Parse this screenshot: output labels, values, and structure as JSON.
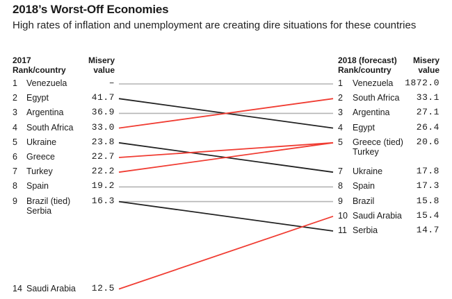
{
  "chart_data": {
    "type": "slope",
    "title": "2018’s Worst-Off Economies",
    "subtitle": "High rates of inflation and unemployment are creating dire situations for these countries",
    "left_header": {
      "rank_line1": "2017",
      "rank_line2": "Rank/country",
      "value_line1": "Misery",
      "value_line2": "value"
    },
    "right_header": {
      "rank_line1": "2018 (forecast)",
      "rank_line2": "Rank/country",
      "value_line1": "Misery",
      "value_line2": "value"
    },
    "left": [
      {
        "rank": "1",
        "country": "Venezuela",
        "value": "–"
      },
      {
        "rank": "2",
        "country": "Egypt",
        "value": "41.7"
      },
      {
        "rank": "3",
        "country": "Argentina",
        "value": "36.9"
      },
      {
        "rank": "4",
        "country": "South Africa",
        "value": "33.0"
      },
      {
        "rank": "5",
        "country": "Ukraine",
        "value": "23.8"
      },
      {
        "rank": "6",
        "country": "Greece",
        "value": "22.7"
      },
      {
        "rank": "7",
        "country": "Turkey",
        "value": "22.2"
      },
      {
        "rank": "8",
        "country": "Spain",
        "value": "19.2"
      },
      {
        "rank": "9",
        "country": "Brazil (tied)",
        "country2": "Serbia",
        "value": "16.3"
      },
      {
        "rank": "14",
        "country": "Saudi Arabia",
        "value": "12.5"
      }
    ],
    "right": [
      {
        "rank": "1",
        "country": "Venezuela",
        "value": "1872.0"
      },
      {
        "rank": "2",
        "country": "South Africa",
        "value": "33.1"
      },
      {
        "rank": "3",
        "country": "Argentina",
        "value": "27.1"
      },
      {
        "rank": "4",
        "country": "Egypt",
        "value": "26.4"
      },
      {
        "rank": "5",
        "country": "Greece (tied)",
        "country2": "Turkey",
        "value": "20.6"
      },
      {
        "rank": "7",
        "country": "Ukraine",
        "value": "17.8"
      },
      {
        "rank": "8",
        "country": "Spain",
        "value": "17.3"
      },
      {
        "rank": "9",
        "country": "Brazil",
        "value": "15.8"
      },
      {
        "rank": "10",
        "country": "Saudi Arabia",
        "value": "15.4"
      },
      {
        "rank": "11",
        "country": "Serbia",
        "value": "14.7"
      }
    ],
    "connections": [
      {
        "country": "Venezuela",
        "from": 1,
        "to": 1,
        "trend": "same"
      },
      {
        "country": "Egypt",
        "from": 2,
        "to": 4,
        "trend": "worse"
      },
      {
        "country": "Argentina",
        "from": 3,
        "to": 3,
        "trend": "same"
      },
      {
        "country": "South Africa",
        "from": 4,
        "to": 2,
        "trend": "up"
      },
      {
        "country": "Ukraine",
        "from": 5,
        "to": 7,
        "trend": "worse"
      },
      {
        "country": "Greece",
        "from": 6,
        "to": 5,
        "trend": "up"
      },
      {
        "country": "Turkey",
        "from": 7,
        "to": 5,
        "trend": "up"
      },
      {
        "country": "Spain",
        "from": 8,
        "to": 8,
        "trend": "same"
      },
      {
        "country": "Brazil",
        "from": 9,
        "to": 9,
        "trend": "same"
      },
      {
        "country": "Serbia",
        "from": 9,
        "to": 11,
        "trend": "worse"
      },
      {
        "country": "Saudi Arabia",
        "from": 14,
        "to": 10,
        "trend": "up"
      }
    ],
    "colors": {
      "up": "#f03c32",
      "worse": "#222222",
      "same": "#b4b4b4"
    }
  }
}
